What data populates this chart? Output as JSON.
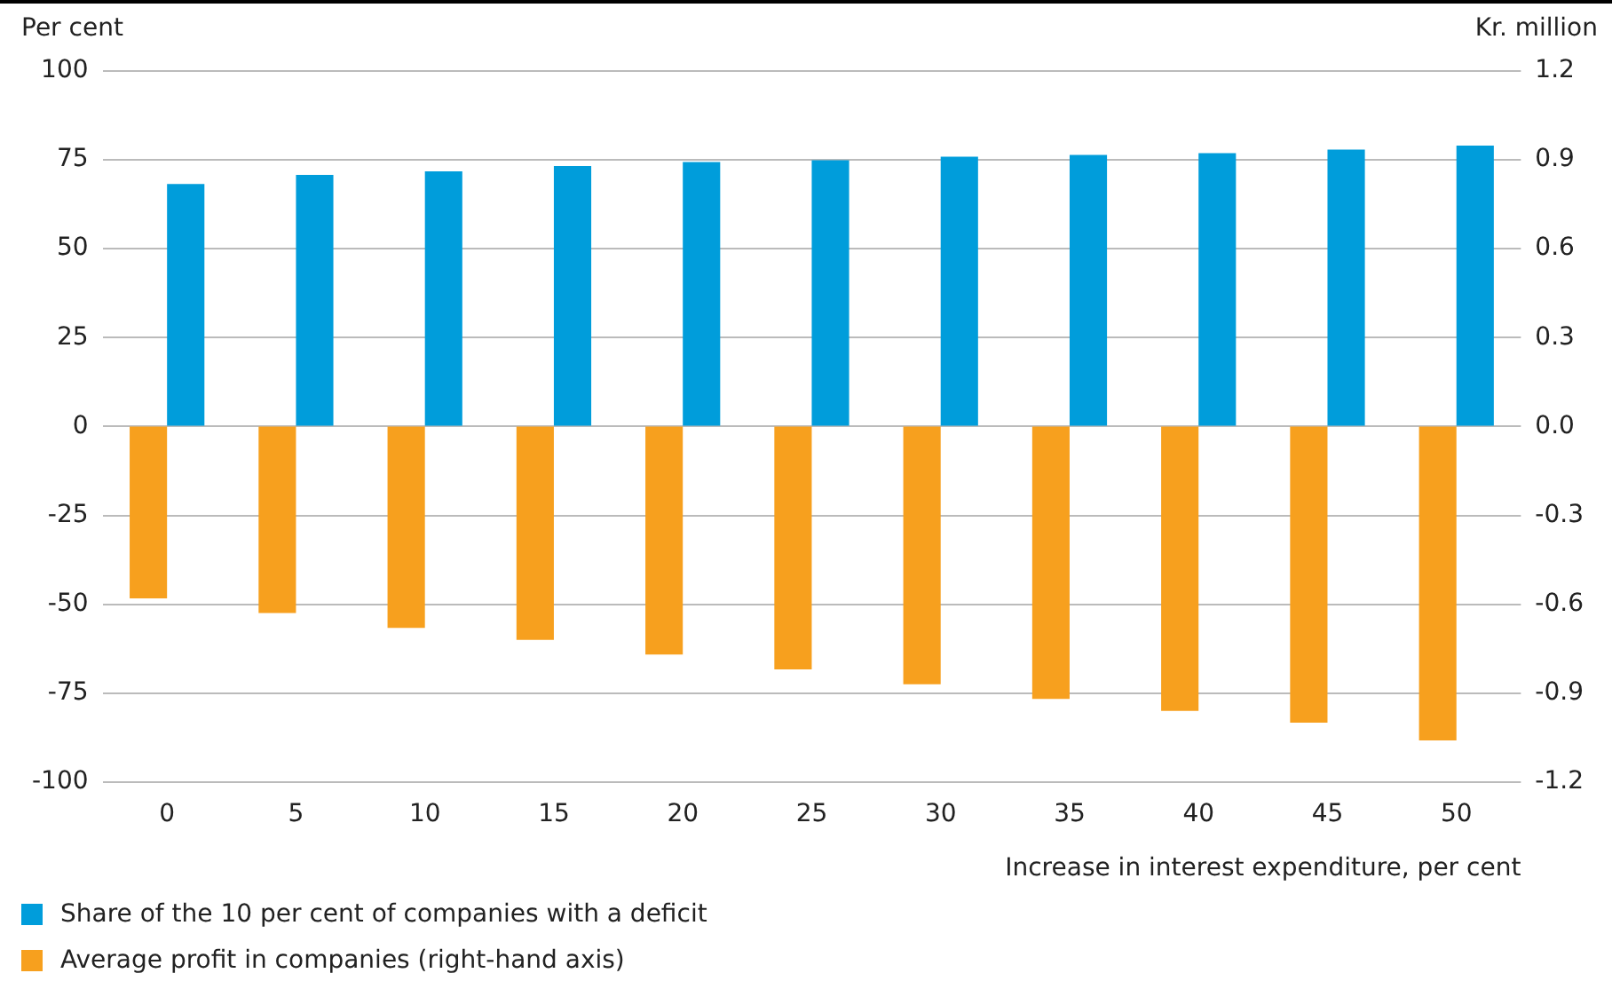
{
  "chart_data": {
    "type": "bar",
    "ylabel": "Per cent",
    "y2label": "Kr. million",
    "xlabel": "Increase in interest expenditure, per cent",
    "categories": [
      "0",
      "5",
      "10",
      "15",
      "20",
      "25",
      "30",
      "35",
      "40",
      "45",
      "50"
    ],
    "series": [
      {
        "name": "Share of the 10 per cent of companies with a deficit",
        "color": "#009ddb",
        "values": [
          68.2,
          70.8,
          71.8,
          73.3,
          74.4,
          74.9,
          75.9,
          76.4,
          76.9,
          77.9,
          79.0
        ]
      },
      {
        "name": "Average profit in companies (right-hand axis)",
        "color": "#f7a01e",
        "axis": "y2",
        "values": [
          -0.58,
          -0.63,
          -0.68,
          -0.72,
          -0.77,
          -0.82,
          -0.87,
          -0.92,
          -0.96,
          -1.0,
          -1.06
        ]
      }
    ],
    "ylim": [
      -100,
      100
    ],
    "yticks": [
      -100,
      -75,
      -50,
      -25,
      0,
      25,
      50,
      75,
      100
    ],
    "y2lim": [
      -1.2,
      1.2
    ],
    "y2ticks": [
      {
        "value": -1.2,
        "label": "-1.2"
      },
      {
        "value": -0.9,
        "label": "-0.9"
      },
      {
        "value": -0.6,
        "label": "-0.6"
      },
      {
        "value": -0.3,
        "label": "-0.3"
      },
      {
        "value": 0,
        "label": "0.0"
      },
      {
        "value": 0.3,
        "label": "0.3"
      },
      {
        "value": 0.6,
        "label": "0.6"
      },
      {
        "value": 0.9,
        "label": "0.9"
      },
      {
        "value": 1.2,
        "label": "1.2"
      }
    ],
    "grid": "y",
    "legend": "bottom left"
  }
}
